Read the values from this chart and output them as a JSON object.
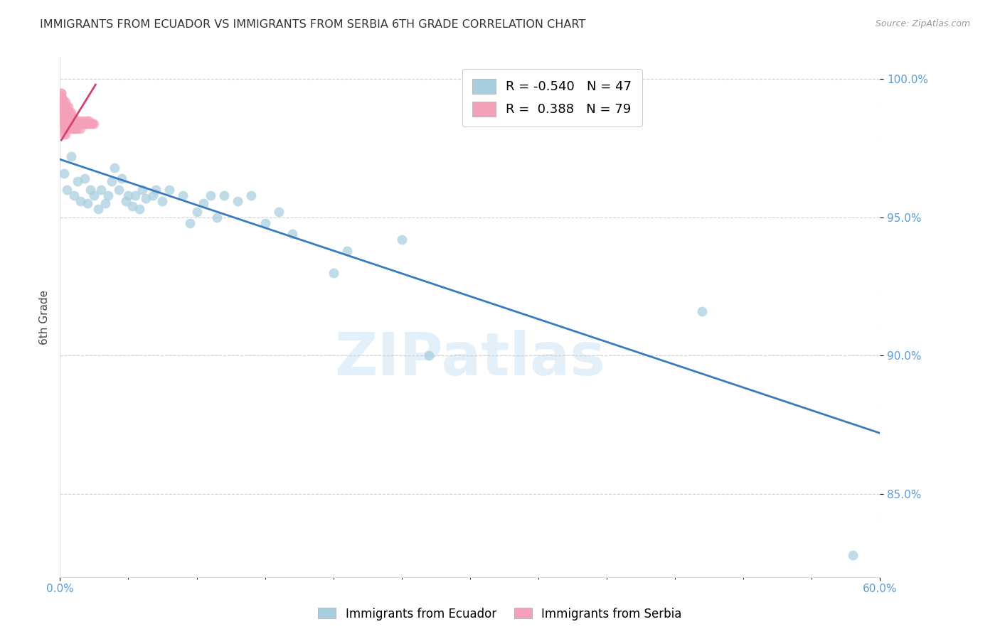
{
  "title": "IMMIGRANTS FROM ECUADOR VS IMMIGRANTS FROM SERBIA 6TH GRADE CORRELATION CHART",
  "source": "Source: ZipAtlas.com",
  "ylabel_left": "6th Grade",
  "legend_label_blue": "Immigrants from Ecuador",
  "legend_label_pink": "Immigrants from Serbia",
  "r_blue": -0.54,
  "n_blue": 47,
  "r_pink": 0.388,
  "n_pink": 79,
  "xmin": 0.0,
  "xmax": 0.6,
  "ymin": 0.82,
  "ymax": 1.008,
  "yticks": [
    0.85,
    0.9,
    0.95,
    1.0
  ],
  "ytick_labels": [
    "85.0%",
    "90.0%",
    "95.0%",
    "100.0%"
  ],
  "xtick_major": [
    0.0,
    0.6
  ],
  "xtick_major_labels": [
    "0.0%",
    "60.0%"
  ],
  "color_blue": "#a8cfe0",
  "color_pink": "#f4a0b8",
  "color_line_blue": "#3a7bbf",
  "color_line_pink": "#d44070",
  "axis_color": "#5b9bd5",
  "watermark": "ZIPatlas",
  "blue_line_x0": 0.0,
  "blue_line_y0": 0.971,
  "blue_line_x1": 0.6,
  "blue_line_y1": 0.872,
  "pink_line_x0": 0.001,
  "pink_line_y0": 0.978,
  "pink_line_x1": 0.026,
  "pink_line_y1": 0.998,
  "blue_scatter_x": [
    0.003,
    0.005,
    0.008,
    0.01,
    0.013,
    0.015,
    0.018,
    0.02,
    0.022,
    0.025,
    0.028,
    0.03,
    0.033,
    0.035,
    0.038,
    0.04,
    0.043,
    0.045,
    0.048,
    0.05,
    0.053,
    0.055,
    0.058,
    0.06,
    0.063,
    0.068,
    0.07,
    0.075,
    0.08,
    0.09,
    0.095,
    0.1,
    0.105,
    0.11,
    0.115,
    0.12,
    0.13,
    0.14,
    0.15,
    0.16,
    0.17,
    0.2,
    0.21,
    0.25,
    0.27,
    0.47,
    0.58
  ],
  "blue_scatter_y": [
    0.966,
    0.96,
    0.972,
    0.958,
    0.963,
    0.956,
    0.964,
    0.955,
    0.96,
    0.958,
    0.953,
    0.96,
    0.955,
    0.958,
    0.963,
    0.968,
    0.96,
    0.964,
    0.956,
    0.958,
    0.954,
    0.958,
    0.953,
    0.96,
    0.957,
    0.958,
    0.96,
    0.956,
    0.96,
    0.958,
    0.948,
    0.952,
    0.955,
    0.958,
    0.95,
    0.958,
    0.956,
    0.958,
    0.948,
    0.952,
    0.944,
    0.93,
    0.938,
    0.942,
    0.9,
    0.916,
    0.828
  ],
  "pink_scatter_x": [
    0.001,
    0.001,
    0.001,
    0.001,
    0.001,
    0.002,
    0.002,
    0.002,
    0.002,
    0.002,
    0.003,
    0.003,
    0.003,
    0.003,
    0.003,
    0.003,
    0.004,
    0.004,
    0.004,
    0.004,
    0.004,
    0.004,
    0.004,
    0.005,
    0.005,
    0.005,
    0.005,
    0.005,
    0.006,
    0.006,
    0.006,
    0.006,
    0.006,
    0.007,
    0.007,
    0.007,
    0.007,
    0.008,
    0.008,
    0.008,
    0.009,
    0.009,
    0.009,
    0.01,
    0.01,
    0.01,
    0.011,
    0.011,
    0.012,
    0.012,
    0.013,
    0.013,
    0.014,
    0.015,
    0.015,
    0.016,
    0.017,
    0.018,
    0.019,
    0.02,
    0.021,
    0.022,
    0.023,
    0.024,
    0.025,
    0.014,
    0.016,
    0.018,
    0.02,
    0.021,
    0.008,
    0.006,
    0.004,
    0.003,
    0.002,
    0.001,
    0.001,
    0.001,
    0.001
  ],
  "pink_scatter_y": [
    0.995,
    0.993,
    0.99,
    0.988,
    0.985,
    0.993,
    0.99,
    0.988,
    0.985,
    0.982,
    0.992,
    0.99,
    0.988,
    0.985,
    0.983,
    0.98,
    0.992,
    0.99,
    0.988,
    0.986,
    0.984,
    0.982,
    0.98,
    0.99,
    0.988,
    0.986,
    0.984,
    0.982,
    0.99,
    0.988,
    0.986,
    0.984,
    0.982,
    0.988,
    0.986,
    0.984,
    0.982,
    0.988,
    0.986,
    0.984,
    0.986,
    0.984,
    0.982,
    0.986,
    0.984,
    0.982,
    0.984,
    0.982,
    0.984,
    0.982,
    0.984,
    0.982,
    0.984,
    0.984,
    0.982,
    0.984,
    0.984,
    0.984,
    0.984,
    0.984,
    0.984,
    0.984,
    0.984,
    0.984,
    0.984,
    0.985,
    0.985,
    0.985,
    0.985,
    0.985,
    0.987,
    0.988,
    0.989,
    0.99,
    0.991,
    0.992,
    0.993,
    0.994,
    0.995
  ]
}
